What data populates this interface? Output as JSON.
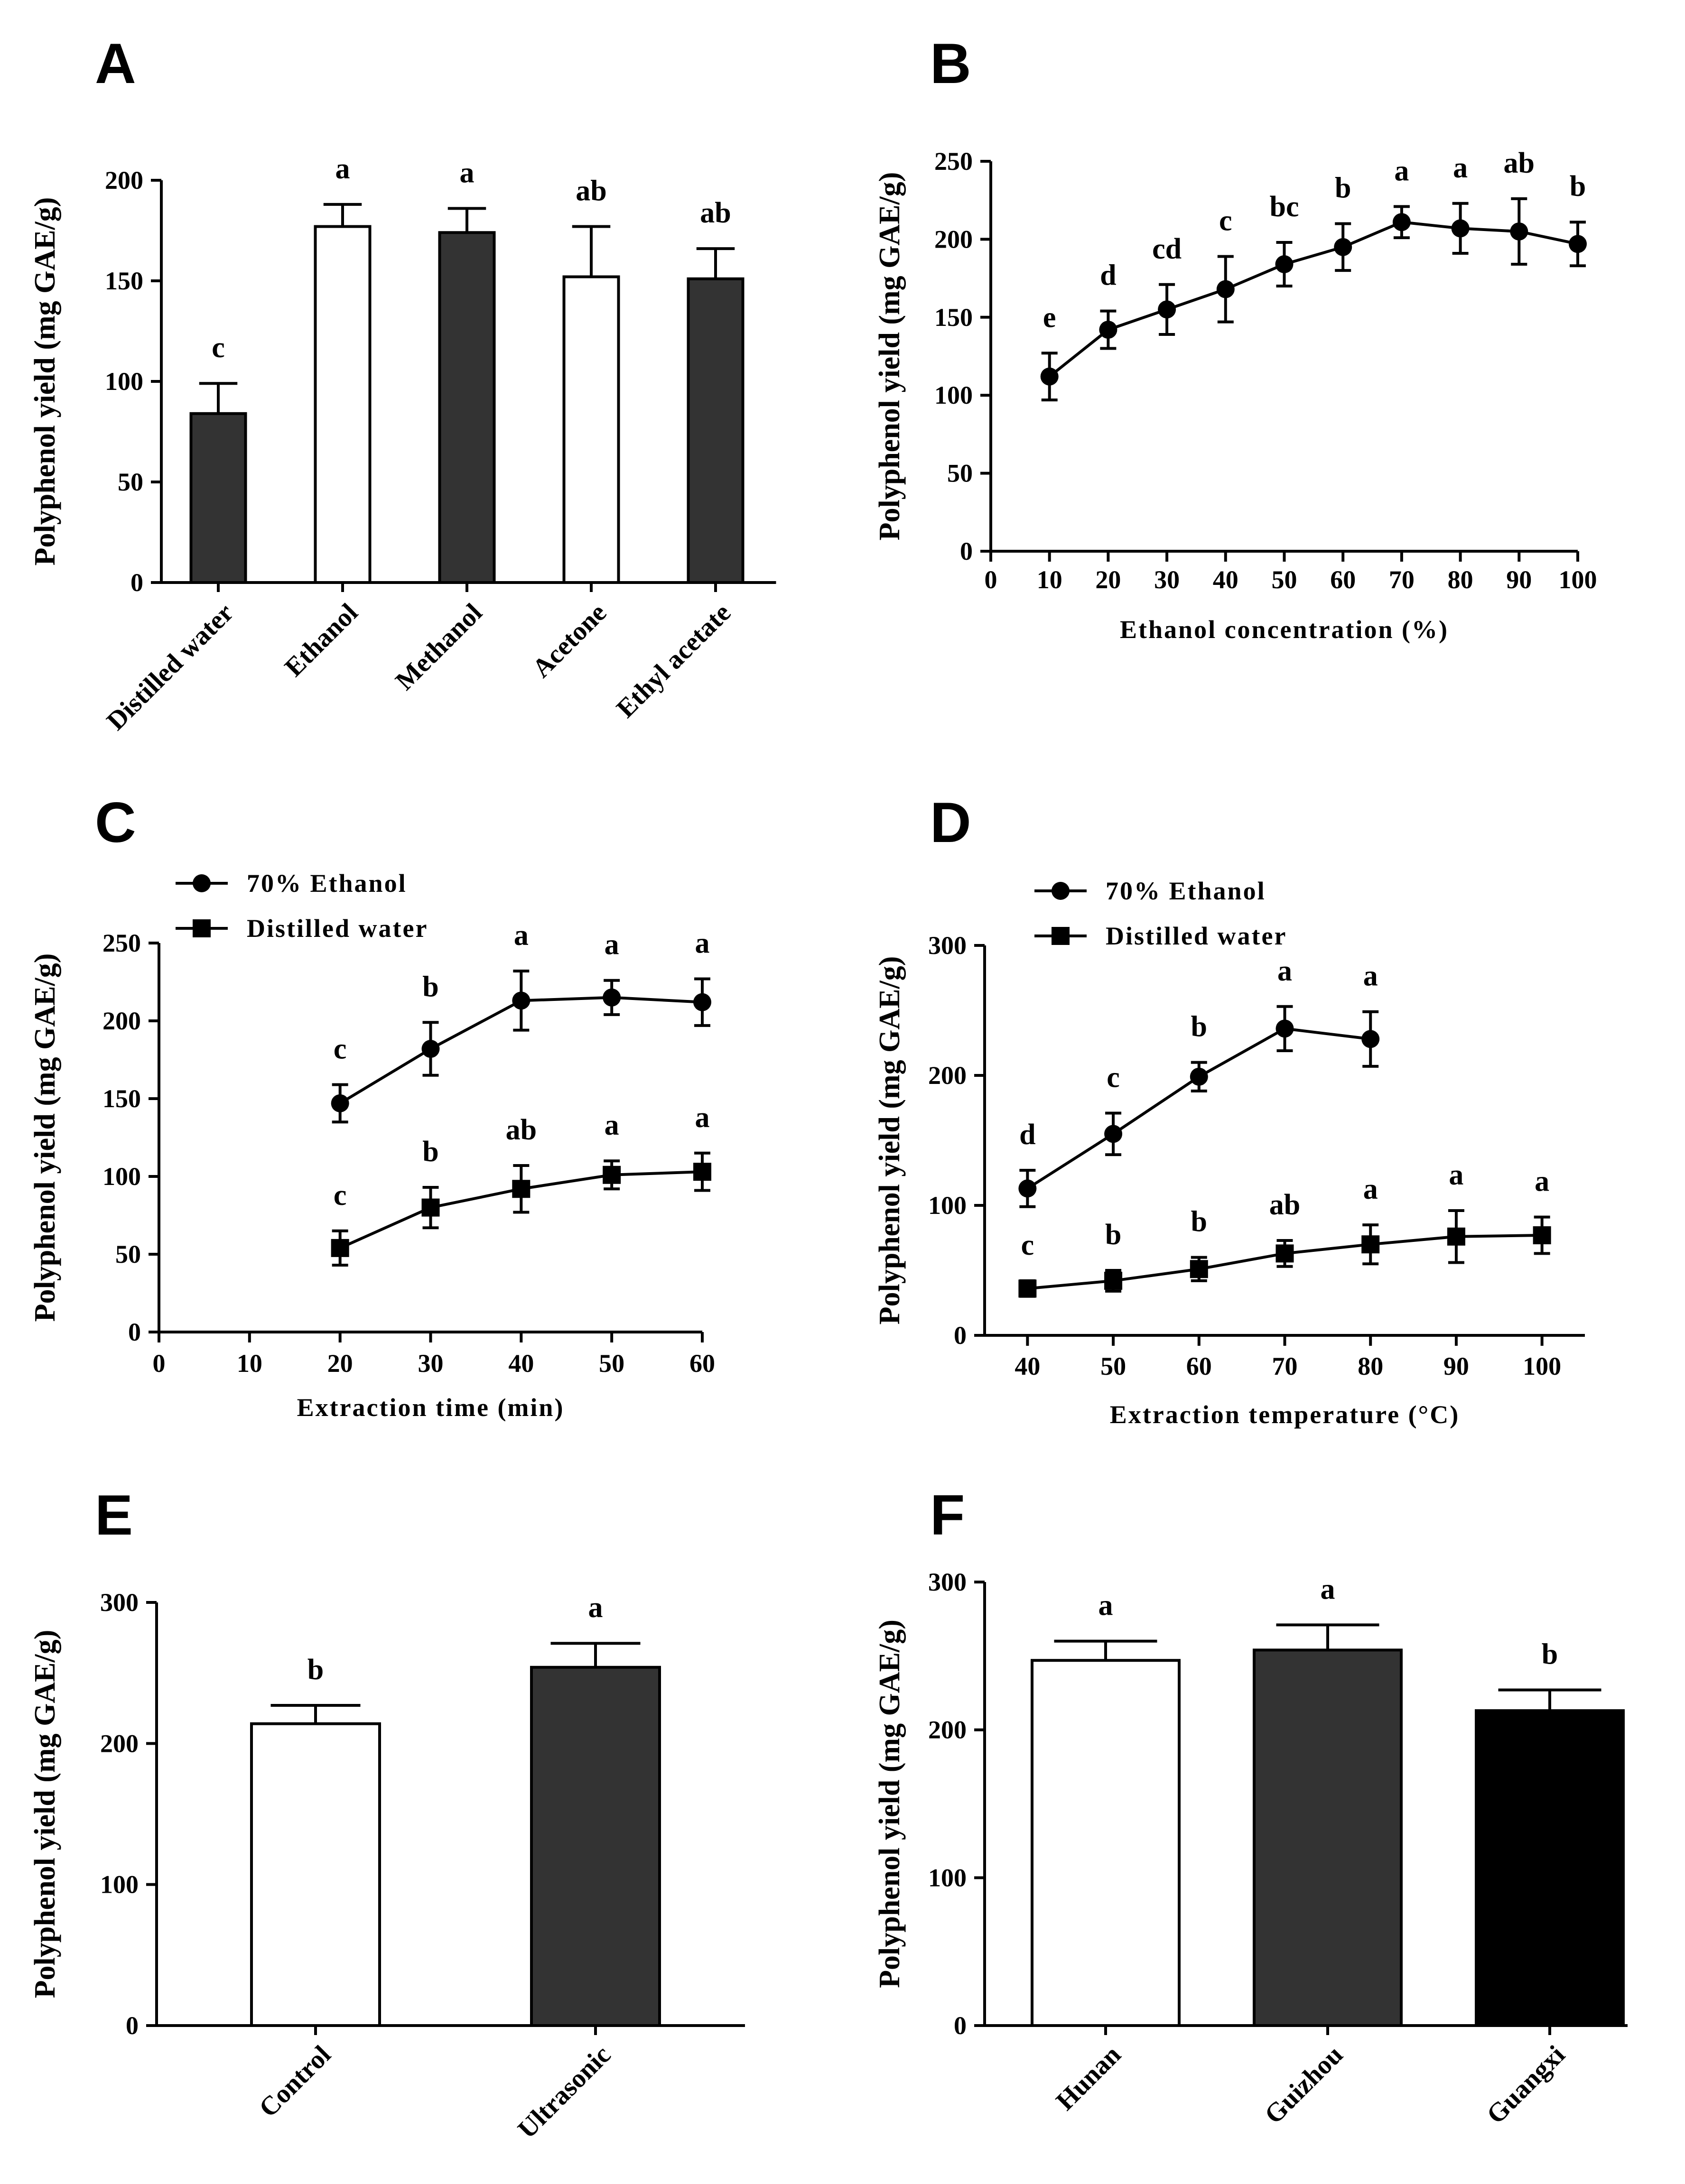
{
  "colors": {
    "dark_bar": "#333333",
    "black_bar": "#000000",
    "white_bar": "#ffffff",
    "ink": "#000000"
  },
  "chart_data": [
    {
      "id": "A",
      "panel_label": "A",
      "type": "bar",
      "ylabel": "Polyphenol yield (mg GAE/g)",
      "xlabel": "",
      "ylim": [
        0,
        200
      ],
      "yticks": [
        0,
        50,
        100,
        150,
        200
      ],
      "categories": [
        "Distilled water",
        "Ethanol",
        "Methanol",
        "Acetone",
        "Ethyl acetate"
      ],
      "values": [
        84,
        177,
        174,
        152,
        151
      ],
      "errors": [
        15,
        11,
        12,
        25,
        15
      ],
      "fills": [
        "dark_bar",
        "white_bar",
        "dark_bar",
        "white_bar",
        "dark_bar"
      ],
      "significance": [
        "c",
        "a",
        "a",
        "ab",
        "ab"
      ]
    },
    {
      "id": "B",
      "panel_label": "B",
      "type": "line",
      "ylabel": "Polyphenol yield (mg GAE/g)",
      "xlabel": "Ethanol concentration (%)",
      "xlim": [
        0,
        100
      ],
      "xticks": [
        0,
        10,
        20,
        30,
        40,
        50,
        60,
        70,
        80,
        90,
        100
      ],
      "ylim": [
        0,
        250
      ],
      "yticks": [
        0,
        50,
        100,
        150,
        200,
        250
      ],
      "series": [
        {
          "name": "",
          "marker": "circle",
          "x": [
            10,
            20,
            30,
            40,
            50,
            60,
            70,
            80,
            90,
            100
          ],
          "values": [
            112,
            142,
            155,
            168,
            184,
            195,
            211,
            207,
            205,
            197
          ],
          "errors": [
            15,
            12,
            16,
            21,
            14,
            15,
            10,
            16,
            21,
            14
          ],
          "significance": [
            "e",
            "d",
            "cd",
            "c",
            "bc",
            "b",
            "a",
            "a",
            "ab",
            "b"
          ]
        }
      ]
    },
    {
      "id": "C",
      "panel_label": "C",
      "type": "line",
      "ylabel": "Polyphenol yield (mg GAE/g)",
      "xlabel": "Extraction time (min)",
      "xlim": [
        0,
        60
      ],
      "xticks": [
        0,
        10,
        20,
        30,
        40,
        50,
        60
      ],
      "ylim": [
        0,
        250
      ],
      "yticks": [
        0,
        50,
        100,
        150,
        200,
        250
      ],
      "legend": "top-left",
      "series": [
        {
          "name": "70% Ethanol",
          "marker": "circle",
          "x": [
            20,
            30,
            40,
            50,
            60
          ],
          "values": [
            147,
            182,
            213,
            215,
            212
          ],
          "errors": [
            12,
            17,
            19,
            11,
            15
          ],
          "significance": [
            "c",
            "b",
            "a",
            "a",
            "a"
          ]
        },
        {
          "name": "Distilled water",
          "marker": "square",
          "x": [
            20,
            30,
            40,
            50,
            60
          ],
          "values": [
            54,
            80,
            92,
            101,
            103
          ],
          "errors": [
            11,
            13,
            15,
            9,
            12
          ],
          "significance": [
            "c",
            "b",
            "ab",
            "a",
            "a"
          ]
        }
      ]
    },
    {
      "id": "D",
      "panel_label": "D",
      "type": "line",
      "ylabel": "Polyphenol yield (mg GAE/g)",
      "xlabel": "Extraction temperature (°C)",
      "xlim": [
        35,
        105
      ],
      "xticks": [
        40,
        50,
        60,
        70,
        80,
        90,
        100
      ],
      "ylim": [
        0,
        300
      ],
      "yticks": [
        0,
        100,
        200,
        300
      ],
      "legend": "top-left",
      "series": [
        {
          "name": "70% Ethanol",
          "marker": "circle",
          "x": [
            40,
            50,
            60,
            70,
            80
          ],
          "values": [
            113,
            155,
            199,
            236,
            228
          ],
          "errors": [
            14,
            16,
            11,
            17,
            21
          ],
          "significance": [
            "d",
            "c",
            "b",
            "a",
            "a"
          ]
        },
        {
          "name": "Distilled water",
          "marker": "square",
          "x": [
            40,
            50,
            60,
            70,
            80,
            90,
            100
          ],
          "values": [
            36,
            42,
            51,
            63,
            70,
            76,
            77
          ],
          "errors": [
            6,
            8,
            9,
            10,
            15,
            20,
            14
          ],
          "significance": [
            "c",
            "b",
            "b",
            "ab",
            "a",
            "a",
            "a"
          ]
        }
      ]
    },
    {
      "id": "E",
      "panel_label": "E",
      "type": "bar",
      "ylabel": "Polyphenol yield (mg GAE/g)",
      "xlabel": "",
      "ylim": [
        0,
        300
      ],
      "yticks": [
        0,
        100,
        200,
        300
      ],
      "categories": [
        "Control",
        "Ultrasonic"
      ],
      "values": [
        214,
        254
      ],
      "errors": [
        13,
        17
      ],
      "fills": [
        "white_bar",
        "dark_bar"
      ],
      "significance": [
        "b",
        "a"
      ]
    },
    {
      "id": "F",
      "panel_label": "F",
      "type": "bar",
      "ylabel": "Polyphenol yield (mg GAE/g)",
      "xlabel": "",
      "ylim": [
        0,
        300
      ],
      "yticks": [
        0,
        100,
        200,
        300
      ],
      "categories": [
        "Hunan",
        "Guizhou",
        "Guangxi"
      ],
      "values": [
        247,
        254,
        213
      ],
      "errors": [
        13,
        17,
        14
      ],
      "fills": [
        "white_bar",
        "dark_bar",
        "black_bar"
      ],
      "significance": [
        "a",
        "a",
        "b"
      ]
    }
  ]
}
